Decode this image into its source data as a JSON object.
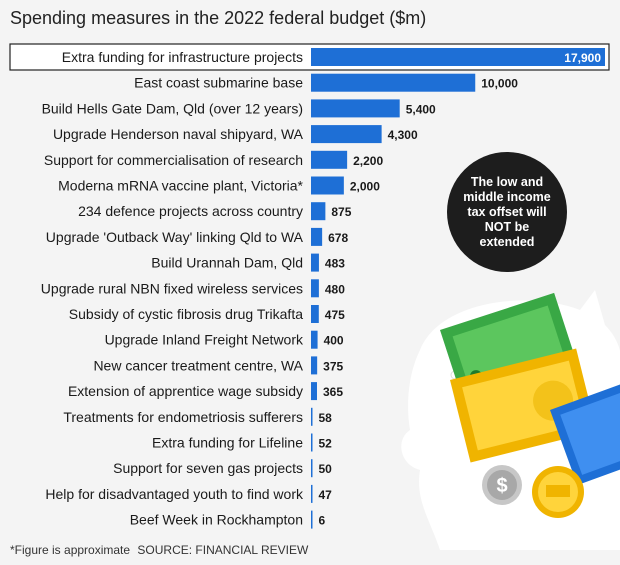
{
  "title": "Spending measures in the 2022 federal budget ($m)",
  "footnote": "*Figure is approximate",
  "source": "SOURCE: FINANCIAL REVIEW",
  "callout": "The low and middle income tax offset will NOT be extended",
  "colors": {
    "bar": "#1e6fd6",
    "highlight_border": "#222222",
    "callout_bg": "#1d1d1d"
  },
  "chart_data": {
    "type": "bar",
    "orientation": "horizontal",
    "highlighted_category": "Extra funding for infrastructure projects",
    "categories": [
      "Extra funding for infrastructure projects",
      "East coast submarine base",
      "Build Hells Gate Dam, Qld (over 12 years)",
      "Upgrade Henderson naval shipyard, WA",
      "Support for commercialisation of research",
      "Moderna mRNA vaccine plant, Victoria*",
      "234 defence projects across country",
      "Upgrade 'Outback Way' linking Qld to WA",
      "Build Urannah Dam, Qld",
      "Upgrade rural NBN fixed wireless services",
      "Subsidy of cystic fibrosis drug Trikafta",
      "Upgrade Inland Freight Network",
      "New cancer treatment centre, WA",
      "Extension of apprentice wage subsidy",
      "Treatments for endometriosis sufferers",
      "Extra funding for Lifeline",
      "Support for seven gas projects",
      "Help for disadvantaged youth to find work",
      "Beef Week in Rockhampton"
    ],
    "values": [
      17900,
      10000,
      5400,
      4300,
      2200,
      2000,
      875,
      678,
      483,
      480,
      475,
      400,
      375,
      365,
      58,
      52,
      50,
      47,
      6
    ],
    "value_labels": [
      "17,900",
      "10,000",
      "5,400",
      "4,300",
      "2,200",
      "2,000",
      "875",
      "678",
      "483",
      "480",
      "475",
      "400",
      "375",
      "365",
      "58",
      "52",
      "50",
      "47",
      "6"
    ],
    "xlim": [
      0,
      17900
    ]
  }
}
